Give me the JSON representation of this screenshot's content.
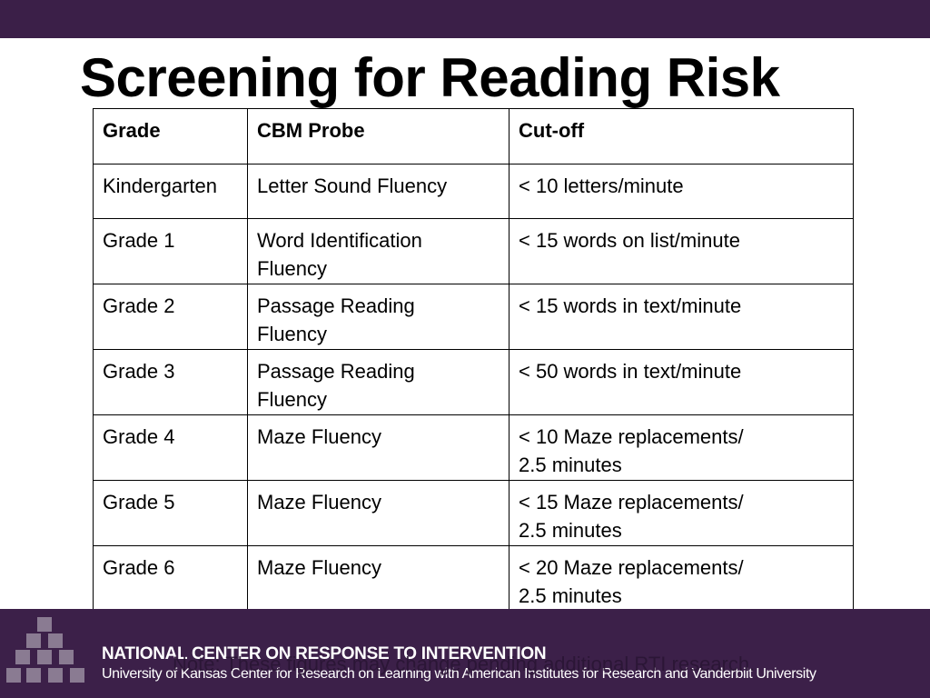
{
  "title": "Screening for Reading Risk",
  "table": {
    "header": [
      "Grade",
      "CBM Probe",
      "Cut-off"
    ],
    "rows": [
      [
        "Kindergarten",
        "Letter Sound Fluency",
        "< 10 letters/minute"
      ],
      [
        "Grade 1",
        "Word Identification\nFluency",
        "< 15 words on list/minute"
      ],
      [
        "Grade 2",
        "Passage Reading\n      Fluency",
        "< 15 words in text/minute"
      ],
      [
        "Grade 3",
        "Passage Reading\n      Fluency",
        "< 50 words in text/minute"
      ],
      [
        "Grade 4",
        "Maze Fluency",
        "< 10 Maze replacements/\n2.5 minutes"
      ],
      [
        "Grade 5",
        "Maze Fluency",
        "< 15 Maze replacements/\n2.5 minutes"
      ],
      [
        "Grade 6",
        "Maze Fluency",
        "< 20 Maze replacements/\n2.5 minutes"
      ]
    ]
  },
  "footer": {
    "organization": "NATIONAL CENTER ON RESPONSE TO INTERVENTION",
    "partners": "University of Kansas Center for Research on Learning with American Institutes for Research and Vanderbilt University",
    "note": "Note: These figures may change pending additional RTI research."
  }
}
